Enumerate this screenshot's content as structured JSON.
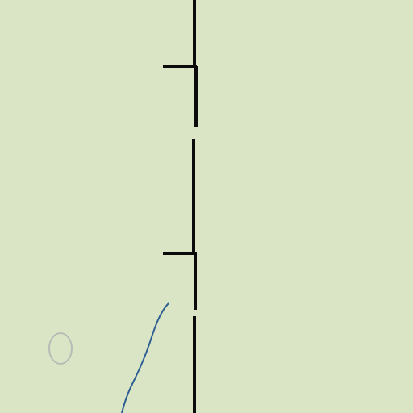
{
  "map": {
    "background_color": "#d9e5c5",
    "line_color": "#0b0b0b",
    "river_color": "#2e5e93",
    "pond_outline_color": "#b9bcb6",
    "features": [
      {
        "kind": "railway",
        "name": "railway-line"
      },
      {
        "kind": "river",
        "name": "stream"
      },
      {
        "kind": "pond",
        "name": "small-pond"
      }
    ]
  }
}
